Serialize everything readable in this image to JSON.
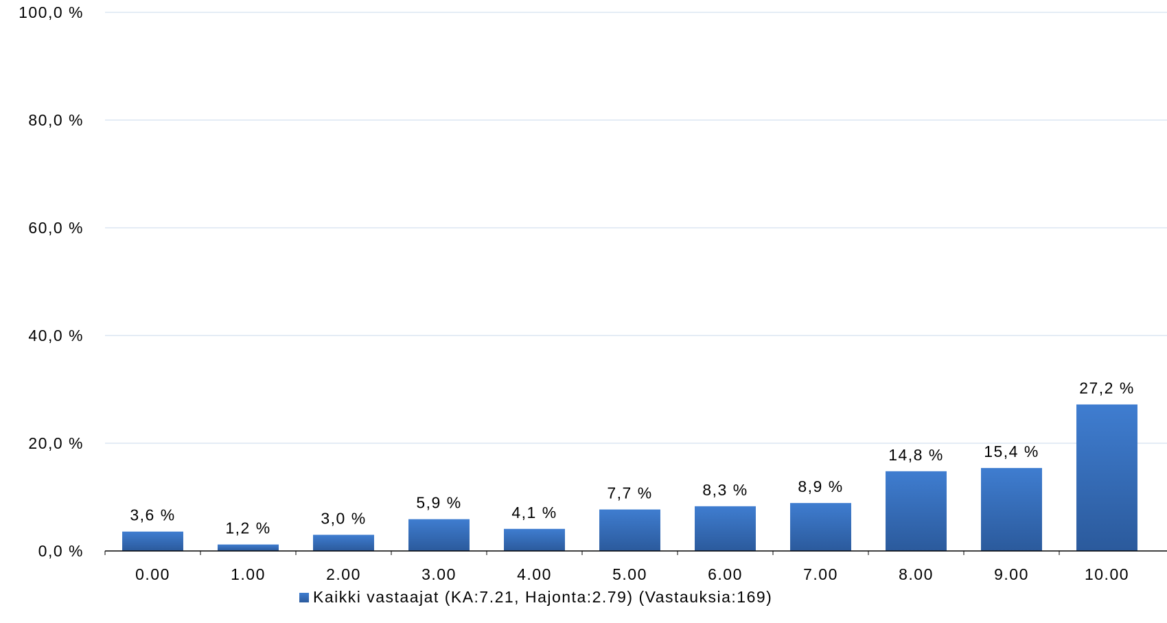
{
  "chart_data": {
    "type": "bar",
    "categories": [
      "0.00",
      "1.00",
      "2.00",
      "3.00",
      "4.00",
      "5.00",
      "6.00",
      "7.00",
      "8.00",
      "9.00",
      "10.00"
    ],
    "series": [
      {
        "name": "Kaikki vastaajat (KA:7.21, Hajonta:2.79) (Vastauksia:169)",
        "values": [
          3.6,
          1.2,
          3.0,
          5.9,
          4.1,
          7.7,
          8.3,
          8.9,
          14.8,
          15.4,
          27.2
        ],
        "labels": [
          "3,6 %",
          "1,2 %",
          "3,0 %",
          "5,9 %",
          "4,1 %",
          "7,7 %",
          "8,3 %",
          "8,9 %",
          "14,8 %",
          "15,4 %",
          "27,2 %"
        ]
      }
    ],
    "yticks": [
      0,
      20,
      40,
      60,
      80,
      100
    ],
    "ytick_labels": [
      "0,0 %",
      "20,0 %",
      "40,0 %",
      "60,0 %",
      "80,0 %",
      "100,0 %"
    ],
    "ylim": [
      0,
      100
    ],
    "grid": true,
    "legend_position": "bottom",
    "colors": {
      "bar_top": "#3f7dd0",
      "bar_bottom": "#2b5a9c",
      "grid": "#dce6f2",
      "axis": "#000000"
    }
  }
}
